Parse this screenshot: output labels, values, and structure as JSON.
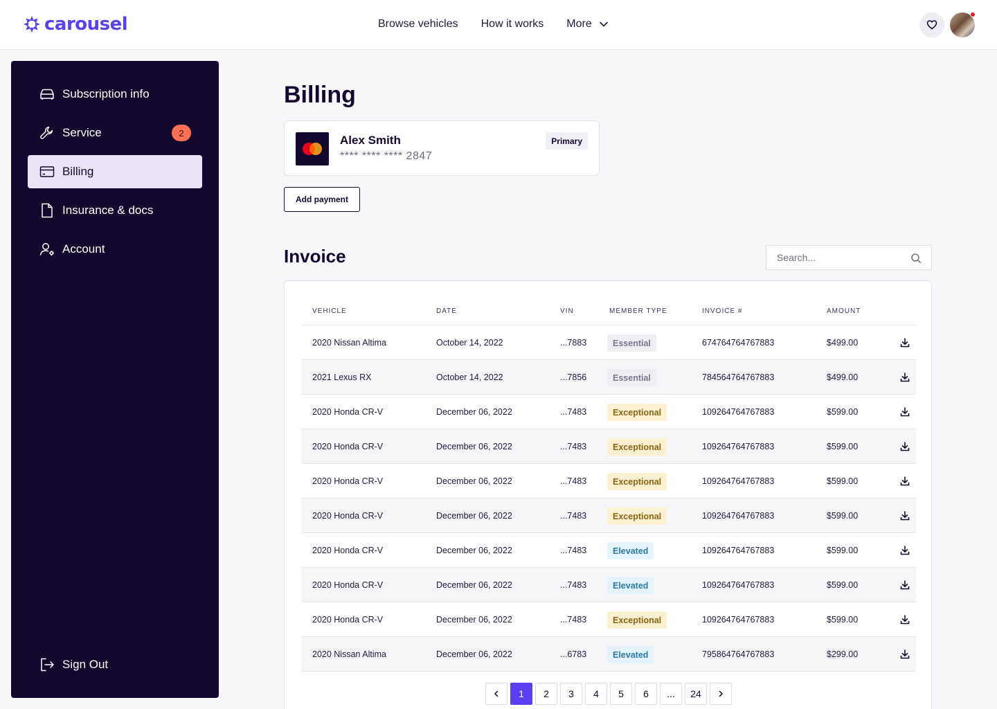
{
  "brand": {
    "name": "carousel",
    "color": "#5b3ff0"
  },
  "nav": {
    "items": [
      "Browse vehicles",
      "How it works",
      "More"
    ],
    "wishlist_icon": "heart-icon",
    "avatar_notification": "red-dot"
  },
  "sidebar": {
    "items": [
      {
        "label": "Subscription info",
        "icon": "car-icon"
      },
      {
        "label": "Service",
        "icon": "wrench-icon",
        "badge": "2"
      },
      {
        "label": "Billing",
        "icon": "credit-card-icon",
        "active": true
      },
      {
        "label": "Insurance & docs",
        "icon": "document-icon"
      },
      {
        "label": "Account",
        "icon": "user-settings-icon"
      }
    ],
    "signout": "Sign Out"
  },
  "billing": {
    "title": "Billing",
    "card": {
      "name": "Alex Smith",
      "number": "**** **** **** 2847",
      "badge": "Primary",
      "brand_icon": "mastercard-icon"
    },
    "add_payment": "Add payment"
  },
  "invoice": {
    "title": "Invoice",
    "search_placeholder": "Search...",
    "columns": [
      "VEHICLE",
      "DATE",
      "VIN",
      "MEMBER TYPE",
      "INVOICE #",
      "AMOUNT"
    ],
    "rows": [
      {
        "vehicle": "2020 Nissan Altima",
        "date": "October 14, 2022",
        "vin": "...7883",
        "member": "Essential",
        "invoice": "674764764767883",
        "amount": "$499.00"
      },
      {
        "vehicle": "2021 Lexus RX",
        "date": "October 14, 2022",
        "vin": "...7856",
        "member": "Essential",
        "invoice": "784564764767883",
        "amount": "$499.00"
      },
      {
        "vehicle": "2020 Honda CR-V",
        "date": "December 06, 2022",
        "vin": "...7483",
        "member": "Exceptional",
        "invoice": "109264764767883",
        "amount": "$599.00"
      },
      {
        "vehicle": "2020 Honda CR-V",
        "date": "December 06, 2022",
        "vin": "...7483",
        "member": "Exceptional",
        "invoice": "109264764767883",
        "amount": "$599.00"
      },
      {
        "vehicle": "2020 Honda CR-V",
        "date": "December 06, 2022",
        "vin": "...7483",
        "member": "Exceptional",
        "invoice": "109264764767883",
        "amount": "$599.00"
      },
      {
        "vehicle": "2020 Honda CR-V",
        "date": "December 06, 2022",
        "vin": "...7483",
        "member": "Exceptional",
        "invoice": "109264764767883",
        "amount": "$599.00"
      },
      {
        "vehicle": "2020 Honda CR-V",
        "date": "December 06, 2022",
        "vin": "...7483",
        "member": "Elevated",
        "invoice": "109264764767883",
        "amount": "$599.00"
      },
      {
        "vehicle": "2020 Honda CR-V",
        "date": "December 06, 2022",
        "vin": "...7483",
        "member": "Elevated",
        "invoice": "109264764767883",
        "amount": "$599.00"
      },
      {
        "vehicle": "2020 Honda CR-V",
        "date": "December 06, 2022",
        "vin": "...7483",
        "member": "Exceptional",
        "invoice": "109264764767883",
        "amount": "$599.00"
      },
      {
        "vehicle": "2020 Nissan Altima",
        "date": "December 06, 2022",
        "vin": "...6783",
        "member": "Elevated",
        "invoice": "795864764767883",
        "amount": "$299.00"
      }
    ],
    "pagination": {
      "current": "1",
      "pages": [
        "1",
        "2",
        "3",
        "4",
        "5",
        "6",
        "...",
        "24"
      ]
    }
  }
}
